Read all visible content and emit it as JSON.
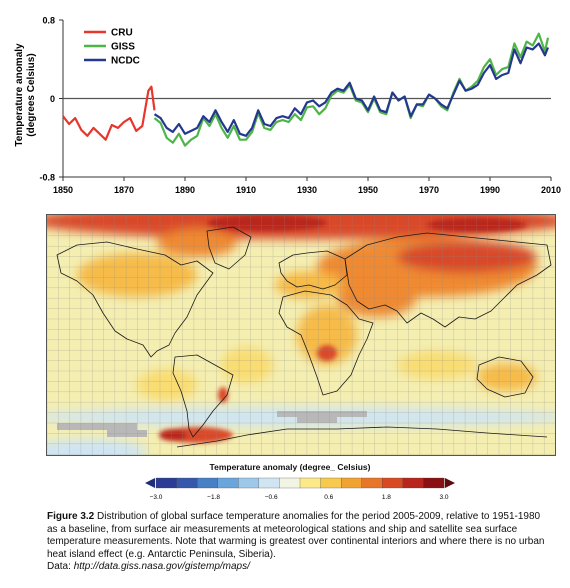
{
  "chart_data": [
    {
      "type": "line",
      "ylabel": "Temperature anomaly (degrees Celsius)",
      "ylabel_lines": [
        "Temperature anomaly",
        "(degrees Celsius)"
      ],
      "xlim": [
        1850,
        2010
      ],
      "ylim": [
        -0.8,
        0.8
      ],
      "y_ticks": [
        "0.8",
        "0",
        "-0.8"
      ],
      "x_ticks": [
        "1850",
        "1870",
        "1890",
        "1910",
        "1930",
        "1950",
        "1970",
        "1990",
        "2010"
      ],
      "zero_line": true,
      "legend_position": "top-left",
      "colors": {
        "CRU": "#e8362c",
        "GISS": "#4fb448",
        "NCDC": "#25388f"
      },
      "series": [
        {
          "name": "CRU",
          "x": [
            1850,
            1852,
            1854,
            1856,
            1858,
            1860,
            1862,
            1864,
            1866,
            1868,
            1870,
            1872,
            1874,
            1876,
            1878,
            1879,
            1880
          ],
          "values": [
            -0.18,
            -0.26,
            -0.2,
            -0.32,
            -0.38,
            -0.3,
            -0.36,
            -0.42,
            -0.27,
            -0.3,
            -0.24,
            -0.2,
            -0.33,
            -0.28,
            0.08,
            0.12,
            -0.12
          ]
        },
        {
          "name": "GISS",
          "x": [
            1880,
            1882,
            1884,
            1886,
            1888,
            1890,
            1892,
            1894,
            1896,
            1898,
            1900,
            1902,
            1904,
            1906,
            1908,
            1910,
            1912,
            1914,
            1916,
            1918,
            1920,
            1922,
            1924,
            1926,
            1928,
            1930,
            1932,
            1934,
            1936,
            1938,
            1940,
            1942,
            1944,
            1946,
            1948,
            1950,
            1952,
            1954,
            1956,
            1958,
            1960,
            1962,
            1964,
            1966,
            1968,
            1970,
            1972,
            1974,
            1976,
            1978,
            1980,
            1982,
            1984,
            1986,
            1988,
            1990,
            1992,
            1994,
            1996,
            1998,
            2000,
            2002,
            2004,
            2006,
            2008,
            2009
          ],
          "values": [
            -0.2,
            -0.25,
            -0.4,
            -0.45,
            -0.36,
            -0.48,
            -0.42,
            -0.38,
            -0.2,
            -0.28,
            -0.16,
            -0.3,
            -0.4,
            -0.28,
            -0.42,
            -0.42,
            -0.34,
            -0.15,
            -0.3,
            -0.32,
            -0.24,
            -0.22,
            -0.24,
            -0.16,
            -0.22,
            -0.09,
            -0.08,
            -0.16,
            -0.1,
            0.03,
            0.08,
            0.06,
            0.14,
            -0.02,
            -0.04,
            -0.14,
            0.0,
            -0.14,
            -0.16,
            0.06,
            -0.02,
            0.02,
            -0.2,
            -0.06,
            -0.08,
            0.04,
            0.0,
            -0.08,
            -0.12,
            0.06,
            0.2,
            0.08,
            0.12,
            0.18,
            0.32,
            0.4,
            0.24,
            0.3,
            0.32,
            0.56,
            0.42,
            0.58,
            0.54,
            0.66,
            0.48,
            0.62
          ]
        },
        {
          "name": "NCDC",
          "x": [
            1880,
            1882,
            1884,
            1886,
            1888,
            1890,
            1892,
            1894,
            1896,
            1898,
            1900,
            1902,
            1904,
            1906,
            1908,
            1910,
            1912,
            1914,
            1916,
            1918,
            1920,
            1922,
            1924,
            1926,
            1928,
            1930,
            1932,
            1934,
            1936,
            1938,
            1940,
            1942,
            1944,
            1946,
            1948,
            1950,
            1952,
            1954,
            1956,
            1958,
            1960,
            1962,
            1964,
            1966,
            1968,
            1970,
            1972,
            1974,
            1976,
            1978,
            1980,
            1982,
            1984,
            1986,
            1988,
            1990,
            1992,
            1994,
            1996,
            1998,
            2000,
            2002,
            2004,
            2006,
            2008,
            2009
          ],
          "values": [
            -0.16,
            -0.2,
            -0.3,
            -0.34,
            -0.26,
            -0.36,
            -0.33,
            -0.3,
            -0.18,
            -0.24,
            -0.12,
            -0.24,
            -0.34,
            -0.22,
            -0.36,
            -0.38,
            -0.3,
            -0.12,
            -0.26,
            -0.28,
            -0.2,
            -0.18,
            -0.2,
            -0.1,
            -0.16,
            -0.04,
            -0.02,
            -0.08,
            -0.04,
            0.06,
            0.1,
            0.08,
            0.16,
            0.0,
            -0.02,
            -0.12,
            0.02,
            -0.12,
            -0.14,
            0.06,
            -0.02,
            0.02,
            -0.18,
            -0.06,
            -0.06,
            0.04,
            0.0,
            -0.06,
            -0.1,
            0.04,
            0.18,
            0.08,
            0.1,
            0.14,
            0.26,
            0.34,
            0.2,
            0.24,
            0.26,
            0.5,
            0.36,
            0.52,
            0.5,
            0.56,
            0.44,
            0.52
          ]
        }
      ]
    },
    {
      "type": "heatmap",
      "colorbar_label": "Temperature anomaly (degree_ Celsius)",
      "colorbar_ticks": [
        "−3.0",
        "−1.8",
        "−0.6",
        "0.6",
        "1.8",
        "3.0"
      ],
      "colorbar_colors": [
        "#2a3c95",
        "#3558ad",
        "#4880c6",
        "#6aa6dc",
        "#9dc8ea",
        "#cfe5f2",
        "#f2f5e4",
        "#fbe98a",
        "#f7c94c",
        "#f2a233",
        "#e8762a",
        "#d84a22",
        "#b8251d",
        "#8a1014"
      ],
      "palette": {
        "neutral": "#f4eeb1",
        "light_warm": "#f9dd72",
        "warm": "#f6bb48",
        "hot": "#ef8a33",
        "very_hot": "#d8492b",
        "extreme": "#b8251d",
        "cool": "#cfe5f2",
        "missing": "#b8b8b8"
      }
    }
  ],
  "caption": {
    "label": "Figure 3.2",
    "text": "Distribution of global surface temperature anomalies for the period 2005-2009, relative to 1951-1980 as a baseline, from surface air measurements at meteorological stations and ship and satellite sea surface temperature measurements. Note that warming is greatest over continental interiors and where there is no urban heat island effect (e.g. Antarctic Peninsula, Siberia).",
    "source_prefix": "Data: ",
    "source_url": "http://data.giss.nasa.gov/gistemp/maps/"
  }
}
